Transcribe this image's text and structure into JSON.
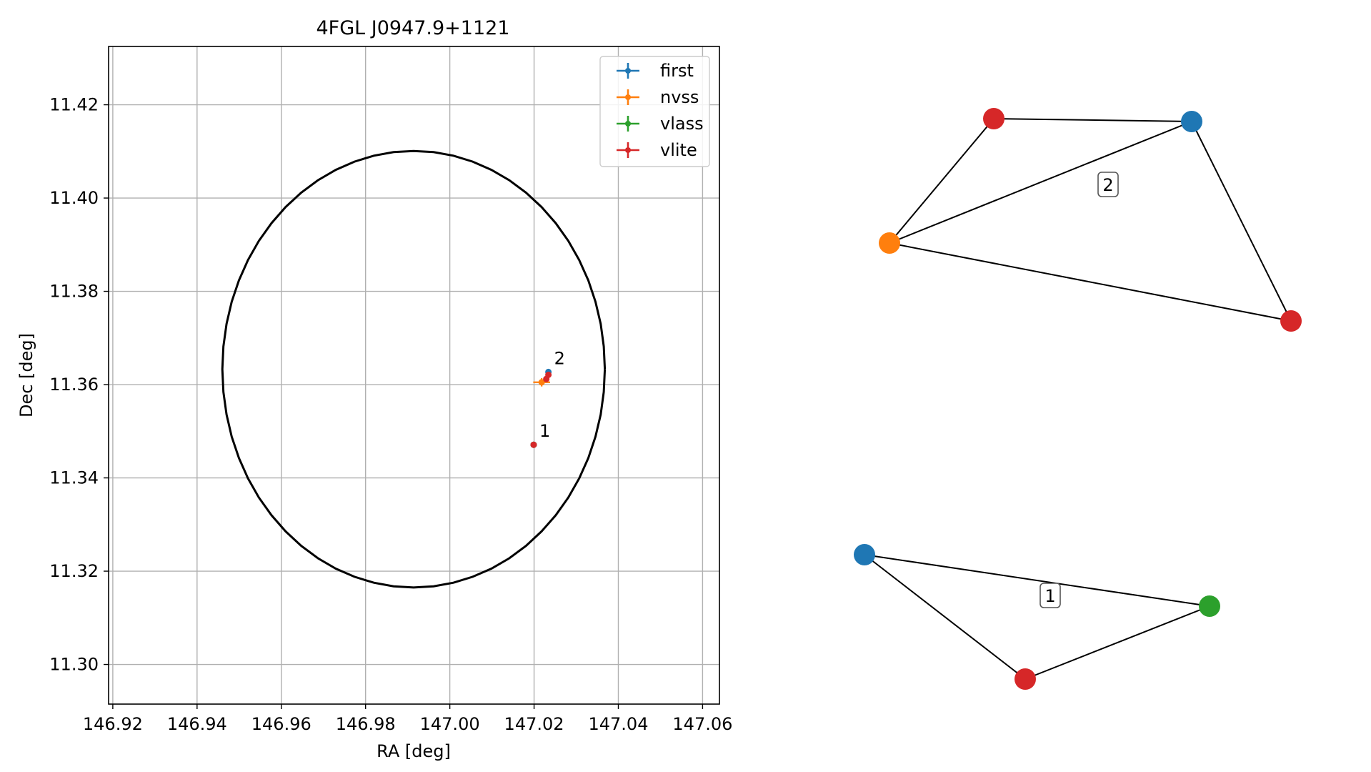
{
  "chart_data": [
    {
      "type": "scatter",
      "title": "4FGL J0947.9+1121",
      "xlabel": "RA [deg]",
      "ylabel": "Dec [deg]",
      "xlim": [
        146.919,
        147.064
      ],
      "ylim": [
        11.2915,
        11.4325
      ],
      "x_ticks": [
        146.92,
        146.94,
        146.96,
        146.98,
        147.0,
        147.02,
        147.04,
        147.06
      ],
      "x_tick_labels": [
        "146.92",
        "146.94",
        "146.96",
        "146.98",
        "147.00",
        "147.02",
        "147.04",
        "147.06"
      ],
      "y_ticks": [
        11.3,
        11.32,
        11.34,
        11.36,
        11.38,
        11.4,
        11.42
      ],
      "y_tick_labels": [
        "11.30",
        "11.32",
        "11.34",
        "11.36",
        "11.38",
        "11.40",
        "11.42"
      ],
      "grid": true,
      "legend_position": "top-right",
      "ellipse": {
        "center": [
          146.9914,
          11.3633
        ],
        "semi_axis_ra": 0.0454,
        "semi_axis_dec": 0.0468,
        "color": "#000000"
      },
      "series": [
        {
          "name": "first",
          "color": "#1f77b4",
          "points": [
            {
              "x": 147.0199,
              "y": 11.3471,
              "xerr": 0.0002,
              "yerr": 0.0002
            },
            {
              "x": 147.0234,
              "y": 11.3627,
              "xerr": 0.0002,
              "yerr": 0.0002
            }
          ]
        },
        {
          "name": "nvss",
          "color": "#ff7f0e",
          "points": [
            {
              "x": 147.0218,
              "y": 11.3605,
              "xerr": 0.002,
              "yerr": 0.0009
            }
          ]
        },
        {
          "name": "vlass",
          "color": "#2ca02c",
          "points": [
            {
              "x": 147.0199,
              "y": 11.3471,
              "xerr": 0.0001,
              "yerr": 0.0001
            }
          ]
        },
        {
          "name": "vlite",
          "color": "#d62728",
          "points": [
            {
              "x": 147.0199,
              "y": 11.3471,
              "xerr": 0.0005,
              "yerr": 0.0005
            },
            {
              "x": 147.0229,
              "y": 11.3612,
              "xerr": 0.0006,
              "yerr": 0.0006
            },
            {
              "x": 147.0234,
              "y": 11.3621,
              "xerr": 0.0005,
              "yerr": 0.0005
            }
          ]
        }
      ],
      "annotations": [
        {
          "text": "1",
          "x": 147.0199,
          "y": 11.3471
        },
        {
          "text": "2",
          "x": 147.0234,
          "y": 11.3627
        }
      ]
    },
    {
      "type": "graph",
      "groups": [
        {
          "label": "2",
          "nodes": [
            {
              "id": "a",
              "color": "#d62728"
            },
            {
              "id": "b",
              "color": "#1f77b4"
            },
            {
              "id": "c",
              "color": "#ff7f0e"
            },
            {
              "id": "d",
              "color": "#d62728"
            }
          ],
          "edges": [
            [
              "a",
              "b"
            ],
            [
              "a",
              "c"
            ],
            [
              "b",
              "c"
            ],
            [
              "b",
              "d"
            ],
            [
              "c",
              "d"
            ]
          ]
        },
        {
          "label": "1",
          "nodes": [
            {
              "id": "e",
              "color": "#1f77b4"
            },
            {
              "id": "f",
              "color": "#2ca02c"
            },
            {
              "id": "g",
              "color": "#d62728"
            }
          ],
          "edges": [
            [
              "e",
              "f"
            ],
            [
              "e",
              "g"
            ],
            [
              "g",
              "f"
            ]
          ]
        }
      ]
    }
  ]
}
